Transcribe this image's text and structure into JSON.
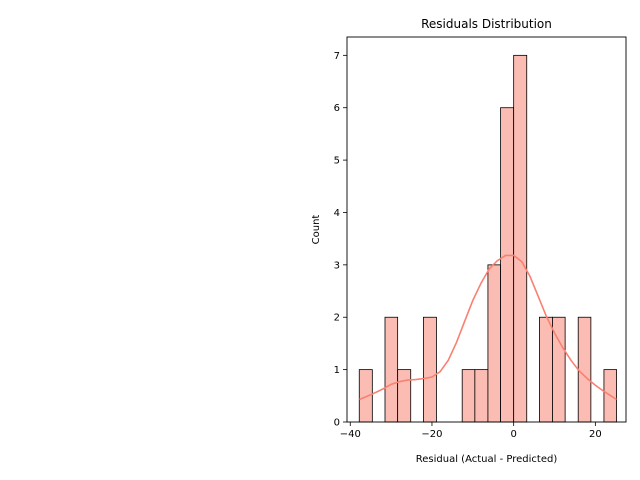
{
  "chart_data": {
    "type": "bar",
    "title": "Residuals Distribution",
    "xlabel": "Residual (Actual - Predicted)",
    "ylabel": "Count",
    "xlim": [
      -40.8,
      27.5
    ],
    "ylim": [
      0,
      7.35
    ],
    "x_ticks": [
      -40,
      -20,
      0,
      20
    ],
    "y_ticks": [
      0,
      1,
      2,
      3,
      4,
      5,
      6,
      7
    ],
    "bar_color": "#fbbcb3",
    "bar_edge_color": "#000000",
    "kde_color": "#fa8072",
    "bins": [
      {
        "x0": -37.8,
        "x1": -34.6,
        "count": 1
      },
      {
        "x0": -34.6,
        "x1": -31.5,
        "count": 0
      },
      {
        "x0": -31.5,
        "x1": -28.4,
        "count": 2
      },
      {
        "x0": -28.4,
        "x1": -25.2,
        "count": 1
      },
      {
        "x0": -25.2,
        "x1": -22.1,
        "count": 0
      },
      {
        "x0": -22.1,
        "x1": -18.9,
        "count": 2
      },
      {
        "x0": -18.9,
        "x1": -15.8,
        "count": 0
      },
      {
        "x0": -15.8,
        "x1": -12.6,
        "count": 0
      },
      {
        "x0": -12.6,
        "x1": -9.5,
        "count": 1
      },
      {
        "x0": -9.5,
        "x1": -6.3,
        "count": 1
      },
      {
        "x0": -6.3,
        "x1": -3.2,
        "count": 3
      },
      {
        "x0": -3.2,
        "x1": 0.0,
        "count": 6
      },
      {
        "x0": 0.0,
        "x1": 3.2,
        "count": 7
      },
      {
        "x0": 3.2,
        "x1": 6.3,
        "count": 0
      },
      {
        "x0": 6.3,
        "x1": 9.5,
        "count": 2
      },
      {
        "x0": 9.5,
        "x1": 12.6,
        "count": 2
      },
      {
        "x0": 12.6,
        "x1": 15.8,
        "count": 0
      },
      {
        "x0": 15.8,
        "x1": 18.9,
        "count": 2
      },
      {
        "x0": 18.9,
        "x1": 22.1,
        "count": 0
      },
      {
        "x0": 22.1,
        "x1": 25.2,
        "count": 1
      }
    ],
    "kde_curve": [
      {
        "x": -37.8,
        "y": 0.43
      },
      {
        "x": -35.0,
        "y": 0.52
      },
      {
        "x": -32.0,
        "y": 0.63
      },
      {
        "x": -30.0,
        "y": 0.72
      },
      {
        "x": -28.0,
        "y": 0.77
      },
      {
        "x": -26.0,
        "y": 0.8
      },
      {
        "x": -24.0,
        "y": 0.81
      },
      {
        "x": -22.0,
        "y": 0.83
      },
      {
        "x": -20.0,
        "y": 0.86
      },
      {
        "x": -18.0,
        "y": 0.96
      },
      {
        "x": -16.0,
        "y": 1.18
      },
      {
        "x": -14.0,
        "y": 1.52
      },
      {
        "x": -12.0,
        "y": 1.92
      },
      {
        "x": -10.0,
        "y": 2.32
      },
      {
        "x": -8.0,
        "y": 2.65
      },
      {
        "x": -6.0,
        "y": 2.92
      },
      {
        "x": -4.0,
        "y": 3.08
      },
      {
        "x": -2.0,
        "y": 3.18
      },
      {
        "x": 0.0,
        "y": 3.18
      },
      {
        "x": 2.0,
        "y": 3.06
      },
      {
        "x": 4.0,
        "y": 2.78
      },
      {
        "x": 6.0,
        "y": 2.4
      },
      {
        "x": 8.0,
        "y": 2.02
      },
      {
        "x": 10.0,
        "y": 1.7
      },
      {
        "x": 12.0,
        "y": 1.42
      },
      {
        "x": 14.0,
        "y": 1.18
      },
      {
        "x": 16.0,
        "y": 0.98
      },
      {
        "x": 18.0,
        "y": 0.83
      },
      {
        "x": 20.0,
        "y": 0.7
      },
      {
        "x": 22.0,
        "y": 0.59
      },
      {
        "x": 24.0,
        "y": 0.49
      },
      {
        "x": 25.2,
        "y": 0.43
      }
    ]
  }
}
